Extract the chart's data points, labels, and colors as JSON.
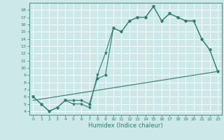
{
  "xlabel": "Humidex (Indice chaleur)",
  "bg_color": "#cce8e8",
  "grid_color": "#ffffff",
  "line_color": "#2d7d6e",
  "xlim": [
    -0.5,
    23.5
  ],
  "ylim": [
    3.5,
    19
  ],
  "xticks": [
    0,
    1,
    2,
    3,
    4,
    5,
    6,
    7,
    8,
    9,
    10,
    11,
    12,
    13,
    14,
    15,
    16,
    17,
    18,
    19,
    20,
    21,
    22,
    23
  ],
  "yticks": [
    4,
    5,
    6,
    7,
    8,
    9,
    10,
    11,
    12,
    13,
    14,
    15,
    16,
    17,
    18
  ],
  "line1_x": [
    0,
    1,
    2,
    3,
    4,
    5,
    6,
    7,
    8,
    9,
    10,
    11,
    12,
    13,
    14,
    15,
    16,
    17,
    18,
    19,
    20,
    21,
    22,
    23
  ],
  "line1_y": [
    6,
    5,
    4,
    4.5,
    5.5,
    5,
    5,
    4.5,
    9,
    12,
    15.5,
    15,
    16.5,
    17,
    17,
    18.5,
    16.5,
    17.5,
    17,
    16.5,
    16.5,
    14,
    12.5,
    9.5
  ],
  "line2_x": [
    0,
    1,
    2,
    3,
    4,
    5,
    6,
    7,
    8,
    9,
    10,
    11,
    12,
    13,
    14,
    15,
    16,
    17,
    18,
    19,
    20,
    21,
    22,
    23
  ],
  "line2_y": [
    6,
    5,
    4,
    4.5,
    5.5,
    5.5,
    5.5,
    5,
    8.5,
    9,
    15.5,
    15,
    16.5,
    17,
    17,
    18.5,
    16.5,
    17.5,
    17,
    16.5,
    16.5,
    14,
    12.5,
    9.5
  ],
  "line3_x": [
    0,
    23
  ],
  "line3_y": [
    5.5,
    9.5
  ],
  "xlabel_fontsize": 6,
  "tick_fontsize": 4.5,
  "linewidth": 0.8,
  "markersize1": 2.5,
  "markersize2": 2.0
}
